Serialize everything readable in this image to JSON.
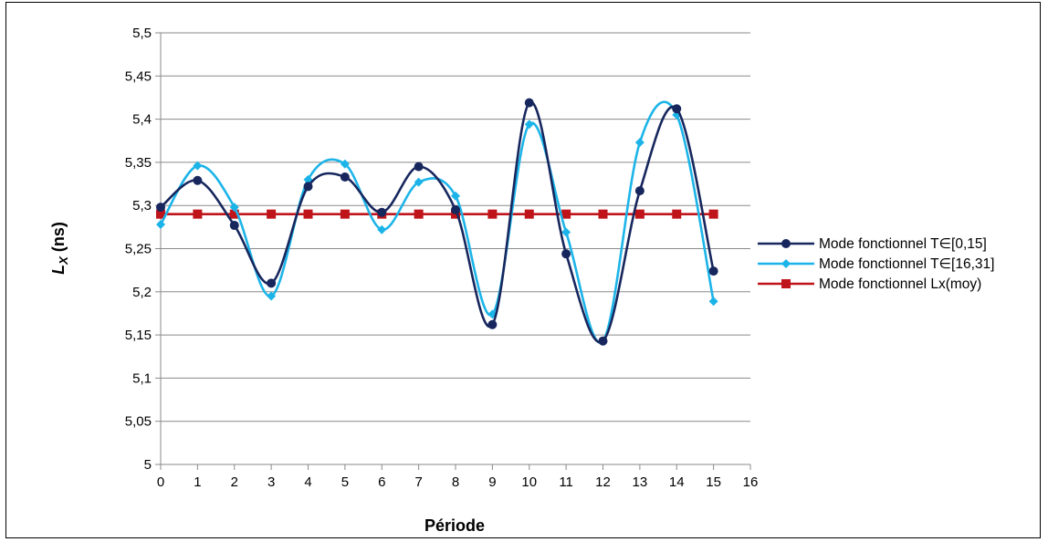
{
  "chart_data": {
    "type": "line",
    "title": "",
    "xlabel": "Période",
    "ylabel_main": "L",
    "ylabel_sub": "X",
    "ylabel_unit": " (ns)",
    "xlim": [
      0,
      16
    ],
    "ylim": [
      5,
      5.5
    ],
    "x_ticks": [
      "0",
      "1",
      "2",
      "3",
      "4",
      "5",
      "6",
      "7",
      "8",
      "9",
      "10",
      "11",
      "12",
      "13",
      "14",
      "15",
      "16"
    ],
    "y_ticks": [
      "5",
      "5,05",
      "5,1",
      "5,15",
      "5,2",
      "5,25",
      "5,3",
      "5,35",
      "5,4",
      "5,45",
      "5,5"
    ],
    "grid": "horizontal",
    "legend_position": "right",
    "x": [
      0,
      1,
      2,
      3,
      4,
      5,
      6,
      7,
      8,
      9,
      10,
      11,
      12,
      13,
      14,
      15
    ],
    "series": [
      {
        "name": "Mode fonctionnel T∈[0,15]",
        "color": "#17275E",
        "marker": "circle",
        "smooth": true,
        "values": [
          5.298,
          5.329,
          5.277,
          5.21,
          5.322,
          5.333,
          5.292,
          5.345,
          5.295,
          5.162,
          5.419,
          5.244,
          5.143,
          5.317,
          5.412,
          5.224
        ]
      },
      {
        "name": "Mode fonctionnel T∈[16,31]",
        "color": "#1CB4E8",
        "marker": "diamond",
        "smooth": true,
        "values": [
          5.278,
          5.346,
          5.298,
          5.195,
          5.33,
          5.348,
          5.272,
          5.327,
          5.311,
          5.174,
          5.394,
          5.269,
          5.143,
          5.373,
          5.405,
          5.189
        ]
      },
      {
        "name": "Mode fonctionnel Lx(moy)",
        "color": "#C0141B",
        "marker": "square",
        "smooth": false,
        "values": [
          5.29,
          5.29,
          5.29,
          5.29,
          5.29,
          5.29,
          5.29,
          5.29,
          5.29,
          5.29,
          5.29,
          5.29,
          5.29,
          5.29,
          5.29,
          5.29
        ]
      }
    ]
  }
}
